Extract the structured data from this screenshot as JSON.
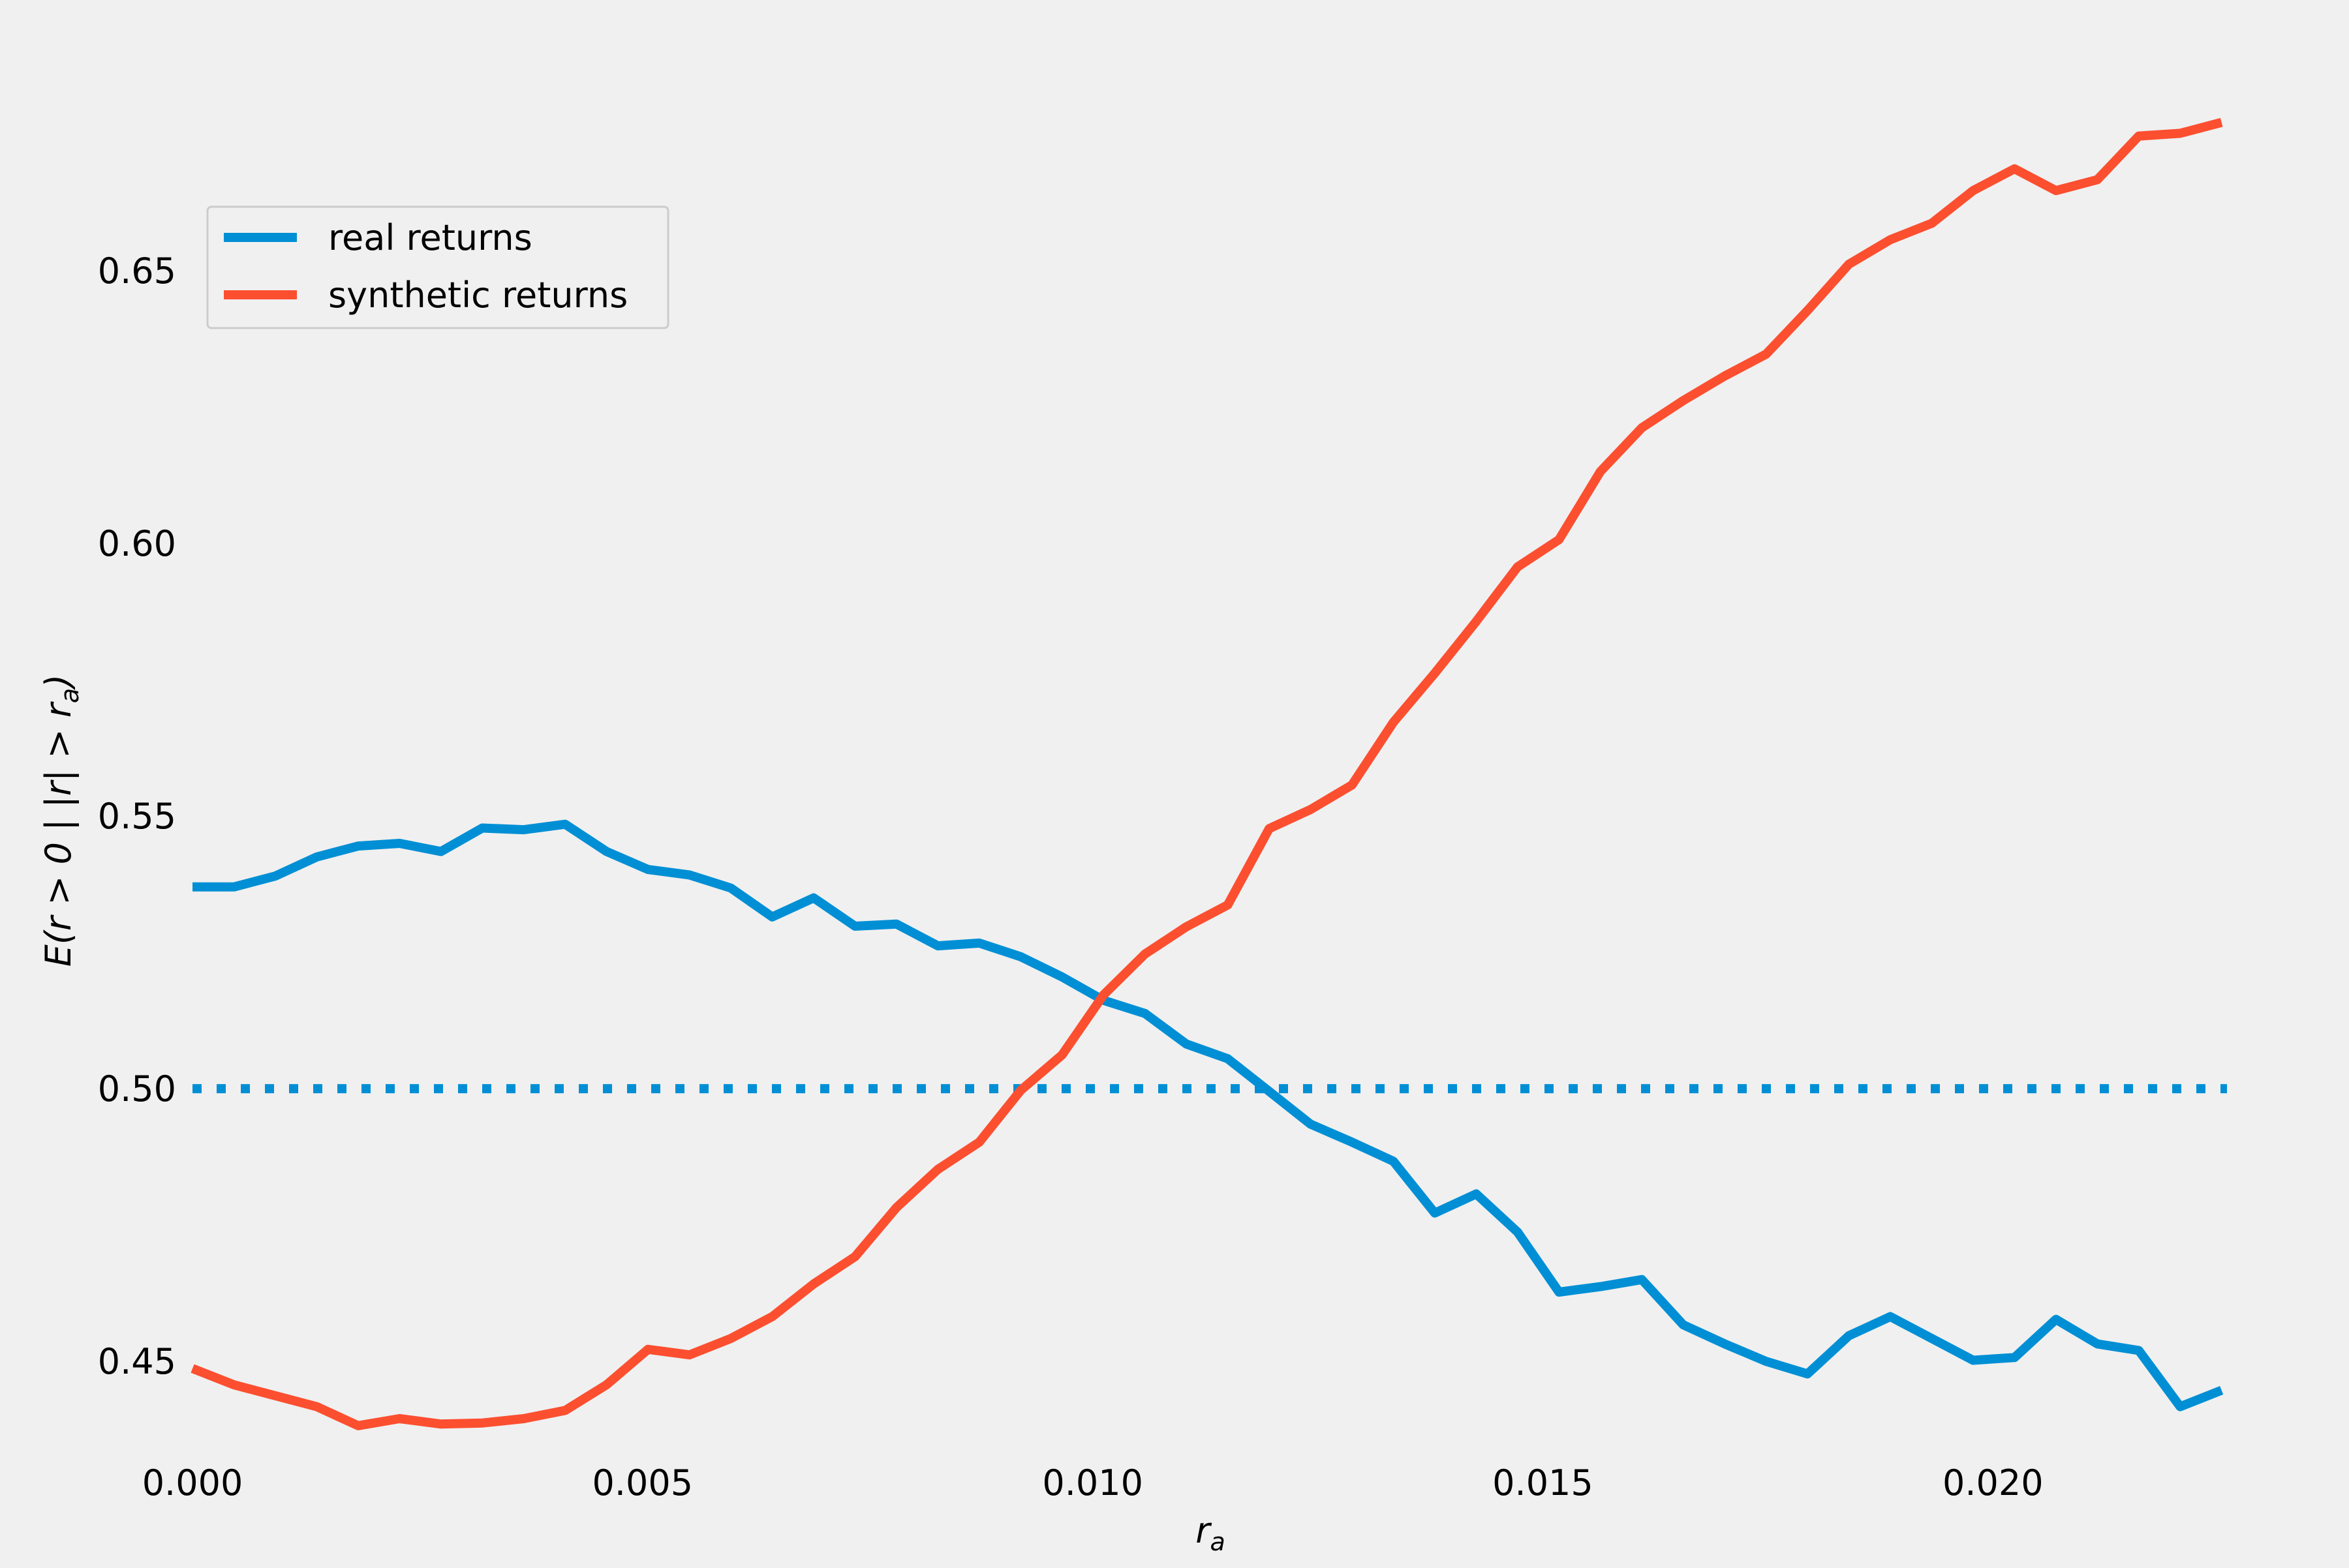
{
  "chart_data": {
    "type": "line",
    "title": "",
    "xlabel": "r_a",
    "ylabel": "E(r > 0 | |r| > r_a)",
    "xlim": [
      0.0,
      0.0226
    ],
    "ylim": [
      0.4383,
      0.6853
    ],
    "xticks": [
      0.0,
      0.005,
      0.01,
      0.015,
      0.02
    ],
    "xtick_labels": [
      "0.000",
      "0.005",
      "0.010",
      "0.015",
      "0.020"
    ],
    "yticks": [
      0.45,
      0.5,
      0.55,
      0.6,
      0.65
    ],
    "ytick_labels": [
      "0.45",
      "0.50",
      "0.55",
      "0.60",
      "0.65"
    ],
    "grid": false,
    "legend_position": "upper-left",
    "x": [
      0.0,
      0.00046,
      0.00092,
      0.00138,
      0.00184,
      0.0023,
      0.00276,
      0.00322,
      0.00368,
      0.00414,
      0.0046,
      0.00506,
      0.00552,
      0.00598,
      0.00644,
      0.0069,
      0.00736,
      0.00782,
      0.00828,
      0.00874,
      0.0092,
      0.00966,
      0.01012,
      0.01058,
      0.01104,
      0.0115,
      0.01196,
      0.01242,
      0.01288,
      0.01334,
      0.0138,
      0.01426,
      0.01472,
      0.01518,
      0.01564,
      0.0161,
      0.01656,
      0.01702,
      0.01748,
      0.01794,
      0.0184,
      0.01886,
      0.01932,
      0.01978,
      0.02024,
      0.0207,
      0.02116,
      0.02162,
      0.02208,
      0.02254
    ],
    "series": [
      {
        "name": "real returns",
        "color": "#008fd5",
        "values": [
          0.537,
          0.537,
          0.539,
          0.5425,
          0.5445,
          0.545,
          0.5435,
          0.5478,
          0.5475,
          0.5485,
          0.5435,
          0.5402,
          0.5392,
          0.5368,
          0.5315,
          0.535,
          0.5298,
          0.5302,
          0.5262,
          0.5267,
          0.5242,
          0.5205,
          0.5162,
          0.5138,
          0.5082,
          0.5055,
          0.4995,
          0.4935,
          0.4902,
          0.4867,
          0.4772,
          0.4807,
          0.4737,
          0.4627,
          0.4637,
          0.465,
          0.4567,
          0.4532,
          0.45,
          0.4477,
          0.4547,
          0.4582,
          0.4542,
          0.4502,
          0.4507,
          0.4577,
          0.4532,
          0.452,
          0.4417,
          0.4447
        ]
      },
      {
        "name": "synthetic returns",
        "color": "#fc4f30",
        "values": [
          0.4487,
          0.4457,
          0.4437,
          0.4417,
          0.4382,
          0.4395,
          0.4385,
          0.4387,
          0.4395,
          0.441,
          0.4457,
          0.4522,
          0.4512,
          0.4542,
          0.4582,
          0.4642,
          0.4692,
          0.4782,
          0.4852,
          0.4902,
          0.4997,
          0.5062,
          0.5172,
          0.5247,
          0.5297,
          0.5337,
          0.5477,
          0.5512,
          0.5557,
          0.5672,
          0.5762,
          0.5857,
          0.5957,
          0.6007,
          0.6132,
          0.6212,
          0.6262,
          0.6307,
          0.6347,
          0.6427,
          0.6512,
          0.6557,
          0.6587,
          0.6647,
          0.6687,
          0.6647,
          0.6667,
          0.6747,
          0.6752,
          0.6772
        ]
      }
    ],
    "reference_line": {
      "y": 0.5,
      "style": "dotted",
      "color": "#008fd5"
    }
  }
}
